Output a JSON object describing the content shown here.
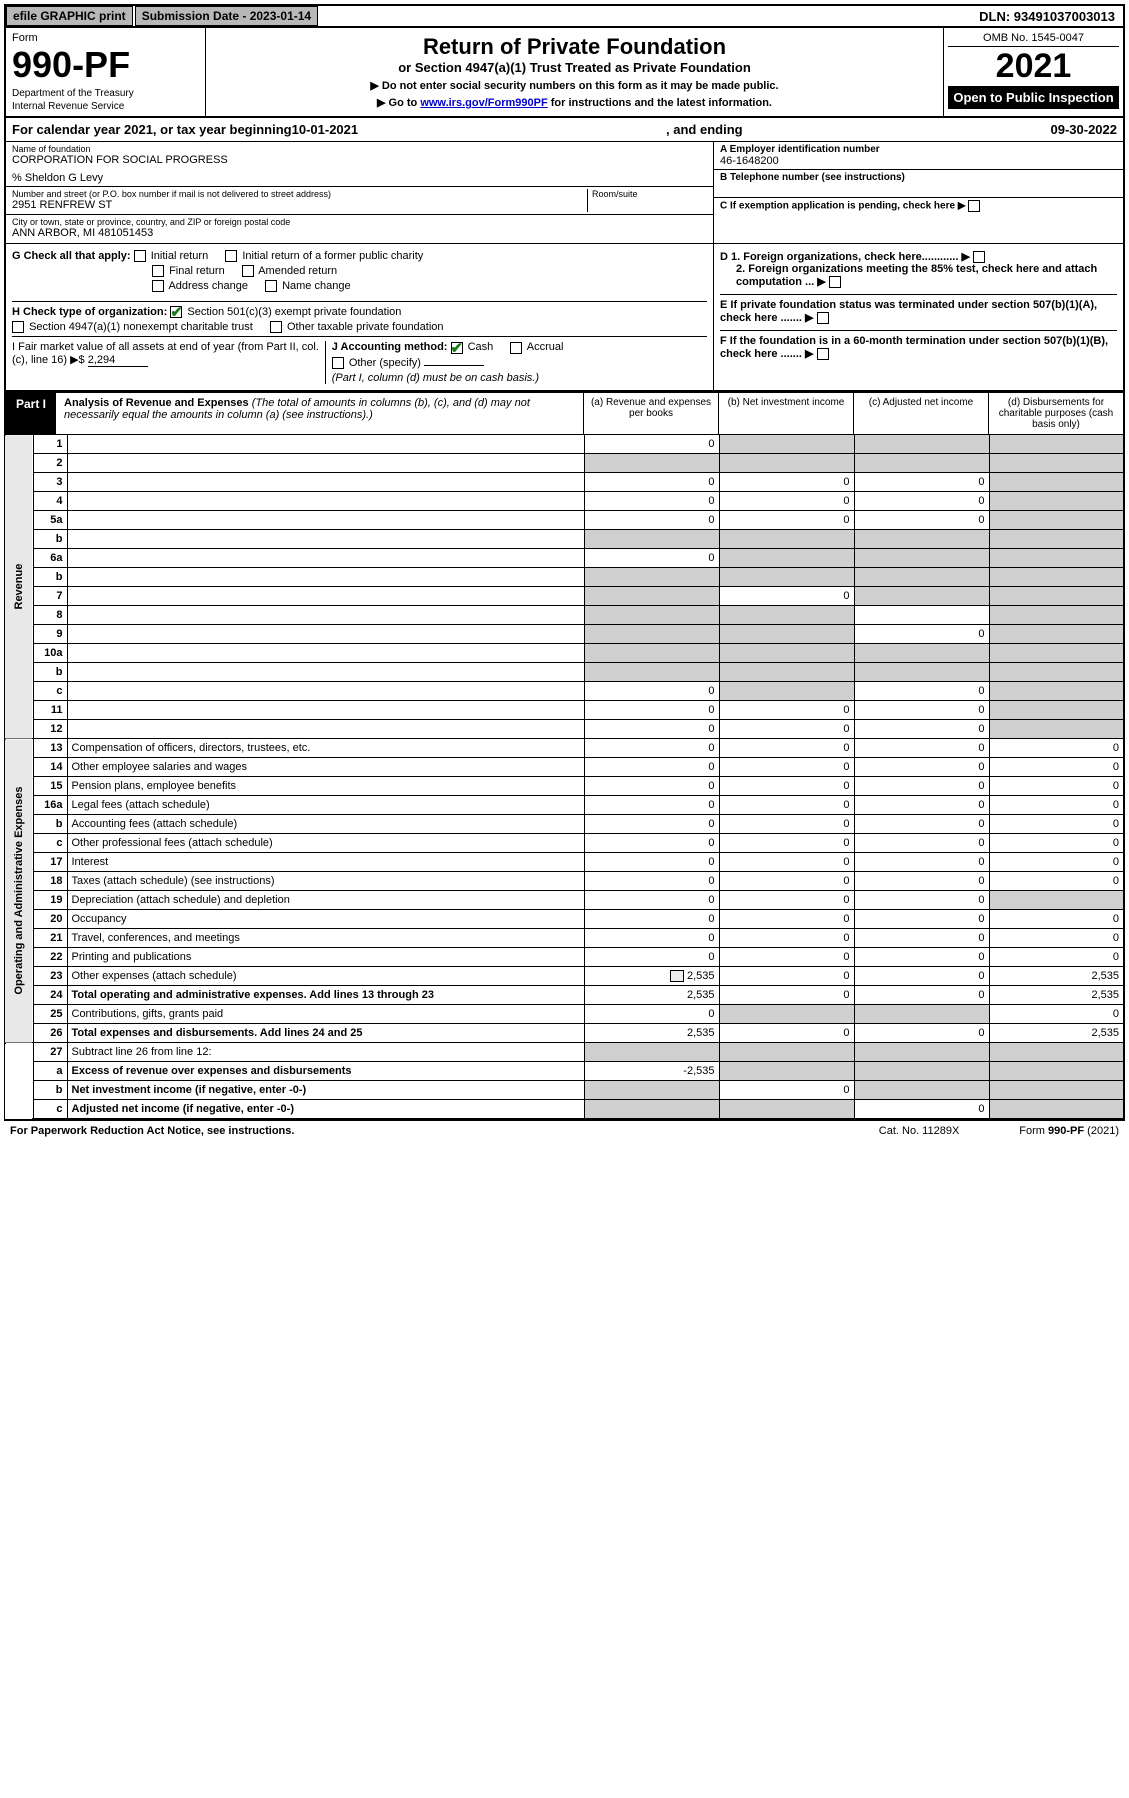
{
  "topbar": {
    "efile": "efile GRAPHIC print",
    "submission_label": "Submission Date - 2023-01-14",
    "dln": "DLN: 93491037003013"
  },
  "header": {
    "form_word": "Form",
    "form_num": "990-PF",
    "dept": "Department of the Treasury",
    "irs": "Internal Revenue Service",
    "title": "Return of Private Foundation",
    "subtitle": "or Section 4947(a)(1) Trust Treated as Private Foundation",
    "note1": "▶ Do not enter social security numbers on this form as it may be made public.",
    "note2_prefix": "▶ Go to ",
    "note2_link": "www.irs.gov/Form990PF",
    "note2_suffix": " for instructions and the latest information.",
    "omb": "OMB No. 1545-0047",
    "year": "2021",
    "inspection": "Open to Public Inspection"
  },
  "calyear": {
    "prefix": "For calendar year 2021, or tax year beginning ",
    "begin": "10-01-2021",
    "mid": " , and ending ",
    "end": "09-30-2022"
  },
  "name_block": {
    "name_lbl": "Name of foundation",
    "name_val": "CORPORATION FOR SOCIAL PROGRESS",
    "care_of": "% Sheldon G Levy",
    "addr_lbl": "Number and street (or P.O. box number if mail is not delivered to street address)",
    "addr_val": "2951 RENFREW ST",
    "room_lbl": "Room/suite",
    "city_lbl": "City or town, state or province, country, and ZIP or foreign postal code",
    "city_val": "ANN ARBOR, MI  481051453",
    "a_lbl": "A Employer identification number",
    "a_val": "46-1648200",
    "b_lbl": "B Telephone number (see instructions)",
    "c_lbl": "C If exemption application is pending, check here"
  },
  "g_checks": {
    "label": "G Check all that apply:",
    "items": [
      "Initial return",
      "Initial return of a former public charity",
      "Final return",
      "Amended return",
      "Address change",
      "Name change"
    ]
  },
  "h_checks": {
    "label": "H Check type of organization:",
    "opt1": "Section 501(c)(3) exempt private foundation",
    "opt2": "Section 4947(a)(1) nonexempt charitable trust",
    "opt3": "Other taxable private foundation"
  },
  "i_block": {
    "label": "I Fair market value of all assets at end of year (from Part II, col. (c), line 16) ▶$ ",
    "val": "2,294"
  },
  "j_block": {
    "label": "J Accounting method:",
    "cash": "Cash",
    "accrual": "Accrual",
    "other": "Other (specify)",
    "note": "(Part I, column (d) must be on cash basis.)"
  },
  "d_block": {
    "d1": "D 1. Foreign organizations, check here............",
    "d2": "2. Foreign organizations meeting the 85% test, check here and attach computation ...",
    "e": "E  If private foundation status was terminated under section 507(b)(1)(A), check here .......",
    "f": "F  If the foundation is in a 60-month termination under section 507(b)(1)(B), check here ......."
  },
  "part1": {
    "tag": "Part I",
    "title": "Analysis of Revenue and Expenses",
    "title_note": " (The total of amounts in columns (b), (c), and (d) may not necessarily equal the amounts in column (a) (see instructions).)",
    "col_a": "(a)  Revenue and expenses per books",
    "col_b": "(b)  Net investment income",
    "col_c": "(c)  Adjusted net income",
    "col_d": "(d)  Disbursements for charitable purposes (cash basis only)"
  },
  "side_labels": {
    "revenue": "Revenue",
    "expenses": "Operating and Administrative Expenses"
  },
  "rows": [
    {
      "n": "1",
      "d": "",
      "a": "0",
      "b": "",
      "c": "",
      "ga": false,
      "gb": true,
      "gc": true,
      "gd": true
    },
    {
      "n": "2",
      "d": "",
      "a": "",
      "b": "",
      "c": "",
      "ga": true,
      "gb": true,
      "gc": true,
      "gd": true
    },
    {
      "n": "3",
      "d": "",
      "a": "0",
      "b": "0",
      "c": "0",
      "ga": false,
      "gb": false,
      "gc": false,
      "gd": true
    },
    {
      "n": "4",
      "d": "",
      "a": "0",
      "b": "0",
      "c": "0",
      "ga": false,
      "gb": false,
      "gc": false,
      "gd": true
    },
    {
      "n": "5a",
      "d": "",
      "a": "0",
      "b": "0",
      "c": "0",
      "ga": false,
      "gb": false,
      "gc": false,
      "gd": true
    },
    {
      "n": "b",
      "d": "",
      "a": "",
      "b": "",
      "c": "",
      "ga": true,
      "gb": true,
      "gc": true,
      "gd": true
    },
    {
      "n": "6a",
      "d": "",
      "a": "0",
      "b": "",
      "c": "",
      "ga": false,
      "gb": true,
      "gc": true,
      "gd": true
    },
    {
      "n": "b",
      "d": "",
      "a": "",
      "b": "",
      "c": "",
      "ga": true,
      "gb": true,
      "gc": true,
      "gd": true
    },
    {
      "n": "7",
      "d": "",
      "a": "",
      "b": "0",
      "c": "",
      "ga": true,
      "gb": false,
      "gc": true,
      "gd": true
    },
    {
      "n": "8",
      "d": "",
      "a": "",
      "b": "",
      "c": "",
      "ga": true,
      "gb": true,
      "gc": false,
      "gd": true
    },
    {
      "n": "9",
      "d": "",
      "a": "",
      "b": "",
      "c": "0",
      "ga": true,
      "gb": true,
      "gc": false,
      "gd": true
    },
    {
      "n": "10a",
      "d": "",
      "a": "",
      "b": "",
      "c": "",
      "ga": true,
      "gb": true,
      "gc": true,
      "gd": true
    },
    {
      "n": "b",
      "d": "",
      "a": "",
      "b": "",
      "c": "",
      "ga": true,
      "gb": true,
      "gc": true,
      "gd": true
    },
    {
      "n": "c",
      "d": "",
      "a": "0",
      "b": "",
      "c": "0",
      "ga": false,
      "gb": true,
      "gc": false,
      "gd": true
    },
    {
      "n": "11",
      "d": "",
      "a": "0",
      "b": "0",
      "c": "0",
      "ga": false,
      "gb": false,
      "gc": false,
      "gd": true
    },
    {
      "n": "12",
      "d": "",
      "a": "0",
      "b": "0",
      "c": "0",
      "ga": false,
      "gb": false,
      "gc": false,
      "gd": true,
      "bold": true
    }
  ],
  "exp_rows": [
    {
      "n": "13",
      "d": "Compensation of officers, directors, trustees, etc.",
      "a": "0",
      "b": "0",
      "c": "0",
      "dd": "0"
    },
    {
      "n": "14",
      "d": "Other employee salaries and wages",
      "a": "0",
      "b": "0",
      "c": "0",
      "dd": "0"
    },
    {
      "n": "15",
      "d": "Pension plans, employee benefits",
      "a": "0",
      "b": "0",
      "c": "0",
      "dd": "0"
    },
    {
      "n": "16a",
      "d": "Legal fees (attach schedule)",
      "a": "0",
      "b": "0",
      "c": "0",
      "dd": "0"
    },
    {
      "n": "b",
      "d": "Accounting fees (attach schedule)",
      "a": "0",
      "b": "0",
      "c": "0",
      "dd": "0"
    },
    {
      "n": "c",
      "d": "Other professional fees (attach schedule)",
      "a": "0",
      "b": "0",
      "c": "0",
      "dd": "0"
    },
    {
      "n": "17",
      "d": "Interest",
      "a": "0",
      "b": "0",
      "c": "0",
      "dd": "0"
    },
    {
      "n": "18",
      "d": "Taxes (attach schedule) (see instructions)",
      "a": "0",
      "b": "0",
      "c": "0",
      "dd": "0"
    },
    {
      "n": "19",
      "d": "Depreciation (attach schedule) and depletion",
      "a": "0",
      "b": "0",
      "c": "0",
      "dd": "",
      "gd": true
    },
    {
      "n": "20",
      "d": "Occupancy",
      "a": "0",
      "b": "0",
      "c": "0",
      "dd": "0"
    },
    {
      "n": "21",
      "d": "Travel, conferences, and meetings",
      "a": "0",
      "b": "0",
      "c": "0",
      "dd": "0"
    },
    {
      "n": "22",
      "d": "Printing and publications",
      "a": "0",
      "b": "0",
      "c": "0",
      "dd": "0"
    },
    {
      "n": "23",
      "d": "Other expenses (attach schedule)",
      "a": "2,535",
      "b": "0",
      "c": "0",
      "dd": "2,535",
      "icon": true
    },
    {
      "n": "24",
      "d": "Total operating and administrative expenses. Add lines 13 through 23",
      "a": "2,535",
      "b": "0",
      "c": "0",
      "dd": "2,535",
      "bold": true
    },
    {
      "n": "25",
      "d": "Contributions, gifts, grants paid",
      "a": "0",
      "b": "",
      "c": "",
      "dd": "0",
      "gb": true,
      "gc": true
    },
    {
      "n": "26",
      "d": "Total expenses and disbursements. Add lines 24 and 25",
      "a": "2,535",
      "b": "0",
      "c": "0",
      "dd": "2,535",
      "bold": true
    }
  ],
  "bottom_rows": [
    {
      "n": "27",
      "d": "Subtract line 26 from line 12:",
      "a": "",
      "b": "",
      "c": "",
      "dd": "",
      "ga": true,
      "gb": true,
      "gc": true,
      "gd": true
    },
    {
      "n": "a",
      "d": "Excess of revenue over expenses and disbursements",
      "a": "-2,535",
      "b": "",
      "c": "",
      "dd": "",
      "gb": true,
      "gc": true,
      "gd": true,
      "bold": true
    },
    {
      "n": "b",
      "d": "Net investment income (if negative, enter -0-)",
      "a": "",
      "b": "0",
      "c": "",
      "dd": "",
      "ga": true,
      "gc": true,
      "gd": true,
      "bold": true
    },
    {
      "n": "c",
      "d": "Adjusted net income (if negative, enter -0-)",
      "a": "",
      "b": "",
      "c": "0",
      "dd": "",
      "ga": true,
      "gb": true,
      "gd": true,
      "bold": true
    }
  ],
  "footer": {
    "left": "For Paperwork Reduction Act Notice, see instructions.",
    "mid": "Cat. No. 11289X",
    "right": "Form 990-PF (2021)"
  }
}
